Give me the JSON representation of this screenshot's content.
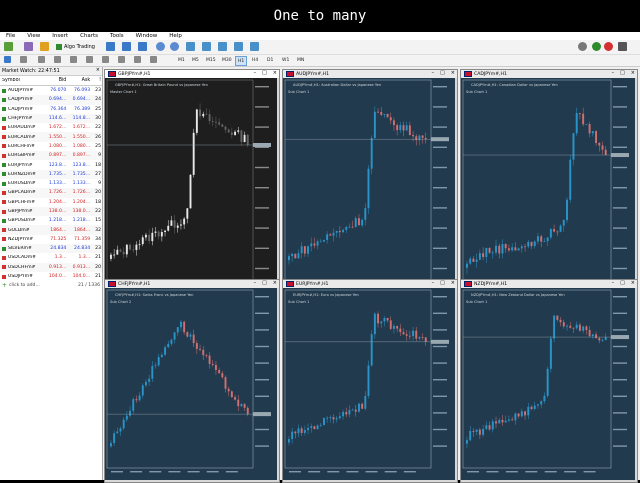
{
  "caption": "One to many",
  "menu": [
    "File",
    "View",
    "Insert",
    "Charts",
    "Tools",
    "Window",
    "Help"
  ],
  "toolbar": {
    "algo_label": "Algo Trading"
  },
  "timeframes": [
    "M1",
    "M5",
    "M15",
    "M30",
    "H1",
    "H4",
    "D1",
    "W1",
    "MN"
  ],
  "active_timeframe": "H1",
  "market_watch": {
    "title": "Market Watch: 22:47:51",
    "columns": [
      "Symbol",
      "Bid",
      "Ask",
      "!"
    ],
    "rows": [
      {
        "symbol": "AUDJPYm#",
        "bid": "76.070",
        "ask": "76.093",
        "spread": "23",
        "dir": "up"
      },
      {
        "symbol": "CADJPYm#",
        "bid": "0.694...",
        "ask": "0.694...",
        "spread": "24",
        "dir": "up"
      },
      {
        "symbol": "CADJPYm#",
        "bid": "76.364",
        "ask": "76.389",
        "spread": "25",
        "dir": "up"
      },
      {
        "symbol": "CHFJPYm#",
        "bid": "114.6...",
        "ask": "114.8...",
        "spread": "30",
        "dir": "up"
      },
      {
        "symbol": "EURAUDm#",
        "bid": "1.672...",
        "ask": "1.672...",
        "spread": "22",
        "dir": "down"
      },
      {
        "symbol": "EURCADm#",
        "bid": "1.550...",
        "ask": "1.550...",
        "spread": "26",
        "dir": "down"
      },
      {
        "symbol": "EURCHFm#",
        "bid": "1.080...",
        "ask": "1.080...",
        "spread": "25",
        "dir": "down"
      },
      {
        "symbol": "EURGBPm#",
        "bid": "0.897...",
        "ask": "0.897...",
        "spread": "9",
        "dir": "down"
      },
      {
        "symbol": "EURJPYm#",
        "bid": "123.8...",
        "ask": "123.8...",
        "spread": "18",
        "dir": "up"
      },
      {
        "symbol": "EURNZDm#",
        "bid": "1.735...",
        "ask": "1.735...",
        "spread": "27",
        "dir": "up"
      },
      {
        "symbol": "EURUSDm#",
        "bid": "1.133...",
        "ask": "1.133...",
        "spread": "9",
        "dir": "up"
      },
      {
        "symbol": "GBPCADm#",
        "bid": "1.726...",
        "ask": "1.726...",
        "spread": "20",
        "dir": "down"
      },
      {
        "symbol": "GBPCHFm#",
        "bid": "1.204...",
        "ask": "1.204...",
        "spread": "18",
        "dir": "down"
      },
      {
        "symbol": "GBPJPYm#",
        "bid": "138.0...",
        "ask": "138.0...",
        "spread": "22",
        "dir": "down"
      },
      {
        "symbol": "GBPUSDm#",
        "bid": "1.218...",
        "ask": "1.218...",
        "spread": "15",
        "dir": "up"
      },
      {
        "symbol": "GOLDm#",
        "bid": "1864...",
        "ask": "1864...",
        "spread": "32",
        "dir": "down"
      },
      {
        "symbol": "NZDJPYm#",
        "bid": "71.325",
        "ask": "71.359",
        "spread": "34",
        "dir": "down"
      },
      {
        "symbol": "SILVERm#",
        "bid": "24.834",
        "ask": "24.834",
        "spread": "23",
        "dir": "up"
      },
      {
        "symbol": "USDCADm#",
        "bid": "1.3...",
        "ask": "1.3...",
        "spread": "21",
        "dir": "down"
      },
      {
        "symbol": "USDCHFm#",
        "bid": "0.913...",
        "ask": "0.913...",
        "spread": "20",
        "dir": "down"
      },
      {
        "symbol": "USDJPYm#",
        "bid": "104.0...",
        "ask": "104.0...",
        "spread": "21",
        "dir": "down"
      }
    ],
    "footer_label": "click to add...",
    "footer_count": "21 / 1336"
  },
  "charts": [
    {
      "title": "GBPJPYm#,H1",
      "label": "GBPJPYm#,H1: Great Britain Pound vs Japanese Yen",
      "info": "Master Chart 1",
      "theme": "dark",
      "trend": "up-spike",
      "bg": "#1e1e1e",
      "bull": "#e8e8e8",
      "bear": "#666666"
    },
    {
      "title": "AUDJPYm#,H1",
      "label": "AUDJPYm#,H1: Australian Dollar vs Japanese Yen",
      "info": "Sub Chart 1",
      "theme": "blue",
      "trend": "up-spike",
      "bg": "#223a4d",
      "bull": "#2a94c9",
      "bear": "#d27070"
    },
    {
      "title": "CADJPYm#,H1",
      "label": "CADJPYm#,H1: Canadian Dollar vs Japanese Yen",
      "info": "Sub Chart 1",
      "theme": "blue",
      "trend": "late-spike",
      "bg": "#223a4d",
      "bull": "#2a94c9",
      "bear": "#d27070"
    },
    {
      "title": "CHFJPYm#,H1",
      "label": "CHFJPYm#,H1: Swiss Franc vs Japanese Yen",
      "info": "Sub Chart 2",
      "theme": "blue",
      "trend": "hump",
      "bg": "#223a4d",
      "bull": "#2a94c9",
      "bear": "#d27070"
    },
    {
      "title": "EURJPYm#,H1",
      "label": "EURJPYm#,H1: Euro vs Japanese Yen",
      "info": "Sub Chart 1",
      "theme": "blue",
      "trend": "up-spike",
      "bg": "#223a4d",
      "bull": "#2a94c9",
      "bear": "#d27070"
    },
    {
      "title": "NZDJPYm#,H1",
      "label": "NZDJPYm#,H1: New Zealand Dollar vs Japanese Yen",
      "info": "Sub Chart 1",
      "theme": "blue",
      "trend": "up-spike",
      "bg": "#223a4d",
      "bull": "#2a94c9",
      "bear": "#d27070"
    }
  ]
}
